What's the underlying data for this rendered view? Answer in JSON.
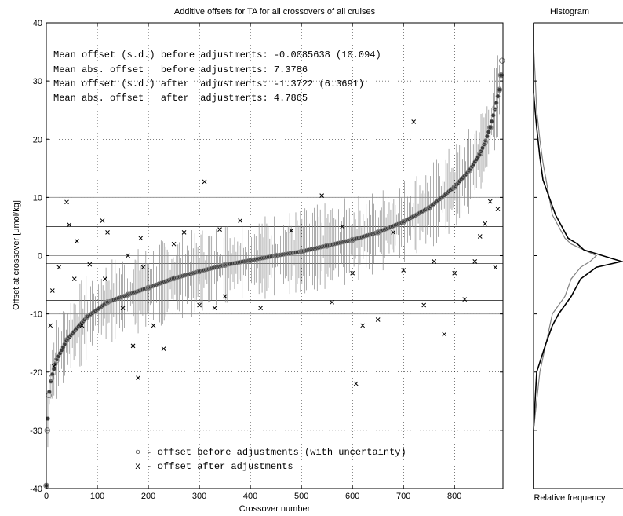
{
  "chart_data": [
    {
      "type": "scatter",
      "title": "Additive offsets for TA for all crossovers of all cruises",
      "xlabel": "Crossover number",
      "ylabel": "Offset at crossover [umol/kg]",
      "xlim": [
        0,
        895
      ],
      "ylim": [
        -40,
        40
      ],
      "xticks": [
        0,
        100,
        200,
        300,
        400,
        500,
        600,
        700,
        800
      ],
      "yticks": [
        -40,
        -30,
        -20,
        -10,
        0,
        10,
        20,
        30,
        40
      ],
      "grid": true,
      "annotations": [
        "Mean offset (s.d.) before adjustments: -0.0085638 (10.094)",
        "Mean abs. offset   before adjustments: 7.3786",
        "Mean offset (s.d.) after  adjustments: -1.3722 (6.3691)",
        "Mean abs. offset   after  adjustments: 4.7865"
      ],
      "legend": {
        "position": "bottom-center",
        "items": [
          {
            "marker": "o",
            "text": "○ - offset before adjustments (with uncertainty)"
          },
          {
            "marker": "x",
            "text": "x - offset after adjustments"
          }
        ]
      },
      "reference_lines": {
        "gray_y": [
          10,
          0,
          -10
        ],
        "black_y": [
          5,
          -1.37,
          -7.7
        ]
      },
      "series": [
        {
          "name": "offset before adjustments (with uncertainty)",
          "marker": "circle",
          "color": "#808080",
          "description": "sorted ascending offsets with vertical uncertainty bars",
          "x": [
            0,
            2,
            5,
            10,
            20,
            40,
            80,
            120,
            160,
            200,
            250,
            300,
            350,
            400,
            450,
            500,
            550,
            600,
            650,
            700,
            750,
            800,
            830,
            850,
            860,
            870,
            880,
            888,
            891,
            893
          ],
          "y": [
            -39.5,
            -30,
            -24,
            -21,
            -18,
            -14.5,
            -10.5,
            -8,
            -6.7,
            -5.5,
            -3.9,
            -2.7,
            -1.6,
            -0.8,
            0,
            0.7,
            1.7,
            2.7,
            4,
            5.8,
            8.2,
            11.8,
            14.7,
            17.5,
            19.5,
            22,
            25.5,
            28.5,
            31,
            33.5
          ]
        },
        {
          "name": "offset after adjustments",
          "marker": "x",
          "color": "#000000",
          "x": [
            8,
            12,
            15,
            25,
            40,
            45,
            55,
            60,
            70,
            85,
            110,
            115,
            120,
            150,
            160,
            170,
            180,
            185,
            190,
            210,
            230,
            250,
            270,
            300,
            310,
            330,
            340,
            350,
            380,
            420,
            480,
            540,
            560,
            580,
            600,
            607,
            620,
            650,
            680,
            700,
            720,
            740,
            760,
            780,
            800,
            820,
            840,
            850,
            860,
            870,
            880,
            885
          ],
          "y": [
            -12,
            -6,
            -19,
            -2,
            9.2,
            5.3,
            -4,
            2.5,
            -12,
            -1.5,
            6,
            -4,
            4,
            -9,
            0,
            -15.5,
            -21,
            3,
            -2,
            -12,
            -16,
            2,
            4,
            -8.5,
            12.7,
            -9,
            4.5,
            -7,
            6,
            -9,
            4.3,
            10.3,
            -8,
            5,
            -3,
            -22,
            -12,
            -11,
            4,
            -2.5,
            23,
            -8.5,
            -1,
            -13.5,
            -3,
            -7.5,
            -1,
            3.3,
            5.5,
            9.3,
            -2,
            8
          ]
        }
      ]
    },
    {
      "type": "line",
      "title": "Histogram",
      "xlabel": "Relative frequency",
      "ylim": [
        -40,
        40
      ],
      "series": [
        {
          "name": "before",
          "color": "#808080",
          "y": [
            -40,
            -30,
            -25,
            -20,
            -15,
            -10,
            -7,
            -4,
            -2,
            -1,
            0,
            1,
            2,
            3,
            5,
            7,
            10,
            13,
            16,
            20,
            25,
            31,
            36,
            40
          ],
          "freq": [
            0,
            0,
            0.01,
            0.02,
            0.04,
            0.06,
            0.1,
            0.12,
            0.15,
            0.18,
            0.2,
            0.16,
            0.12,
            0.1,
            0.08,
            0.06,
            0.05,
            0.04,
            0.03,
            0.02,
            0.01,
            0.005,
            0,
            0
          ]
        },
        {
          "name": "after",
          "color": "#000000",
          "y": [
            -40,
            -30,
            -25,
            -20,
            -15,
            -12,
            -10,
            -7,
            -4,
            -2,
            -1,
            0,
            1,
            2,
            3,
            5,
            7,
            10,
            13,
            17,
            22,
            28,
            35,
            40
          ],
          "freq": [
            0,
            0,
            0.005,
            0.01,
            0.04,
            0.06,
            0.08,
            0.12,
            0.15,
            0.2,
            0.28,
            0.22,
            0.16,
            0.14,
            0.11,
            0.09,
            0.07,
            0.05,
            0.03,
            0.02,
            0.01,
            0,
            0,
            0
          ]
        }
      ]
    }
  ]
}
